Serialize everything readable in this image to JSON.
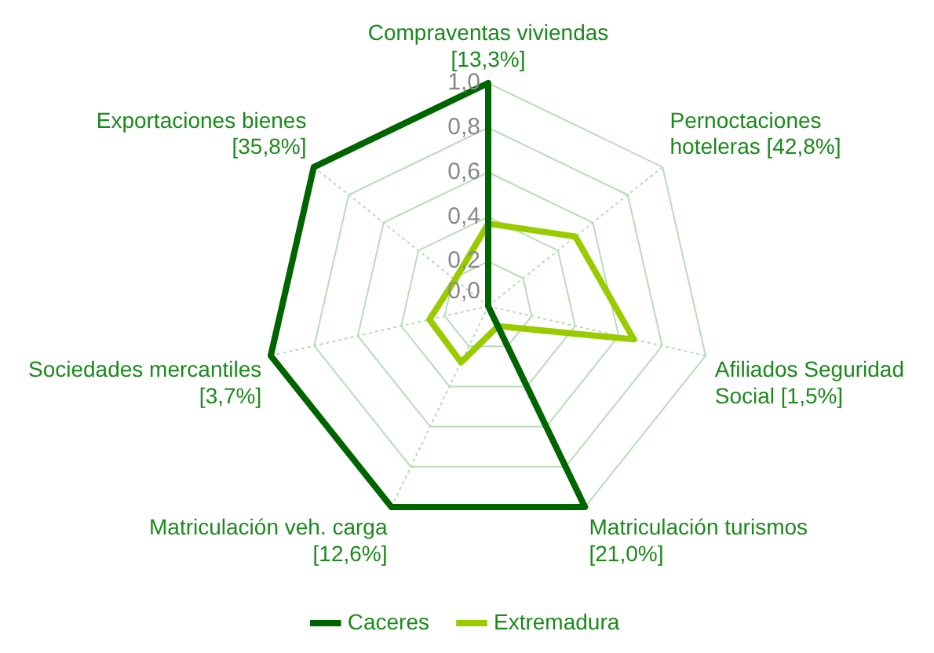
{
  "chart_data": {
    "type": "radar",
    "categories": [
      "Compraventas viviendas\n[13,3%]",
      "Pernoctaciones\nhoteleras [42,8%]",
      "Afiliados Seguridad\nSocial [1,5%]",
      "Matriculación turismos\n[21,0%]",
      "Matriculación veh. carga\n[12,6%]",
      "Sociedades mercantiles\n[3,7%]",
      "Exportaciones bienes\n[35,8%]"
    ],
    "series": [
      {
        "name": "Caceres",
        "color": "#006400",
        "values": [
          1.0,
          0.0,
          0.0,
          1.0,
          1.0,
          1.0,
          1.0
        ]
      },
      {
        "name": "Extremadura",
        "color": "#99cc00",
        "values": [
          0.37,
          0.5,
          0.67,
          0.1,
          0.28,
          0.27,
          0.19
        ]
      }
    ],
    "ylim": [
      0,
      1
    ],
    "yticks": [
      {
        "value": 0,
        "label": "0,0"
      },
      {
        "value": 0.2,
        "label": "0,2"
      },
      {
        "value": 0.4,
        "label": "0,4"
      },
      {
        "value": 0.6,
        "label": "0,6"
      },
      {
        "value": 0.8,
        "label": "0,8"
      },
      {
        "value": 1,
        "label": "1,0"
      }
    ],
    "grid": true,
    "legend": "bottom",
    "marker": "none",
    "line_style": "solid"
  }
}
